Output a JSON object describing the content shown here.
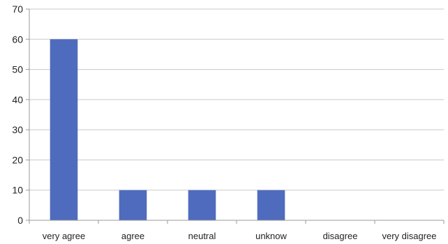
{
  "chart_data": {
    "type": "bar",
    "title": "",
    "xlabel": "",
    "ylabel": "",
    "categories": [
      "very agree",
      "agree",
      "neutral",
      "unknow",
      "disagree",
      "very disagree"
    ],
    "values": [
      60,
      10,
      10,
      10,
      0,
      0
    ],
    "ylim": [
      0,
      70
    ],
    "yticks": [
      "0",
      "10",
      "20",
      "30",
      "40",
      "50",
      "60",
      "70"
    ],
    "grid": true,
    "legend": "none",
    "colors": {
      "bar": "#4f6bbd",
      "grid": "#c9c9c9",
      "axis": "#9a9a9a"
    }
  }
}
